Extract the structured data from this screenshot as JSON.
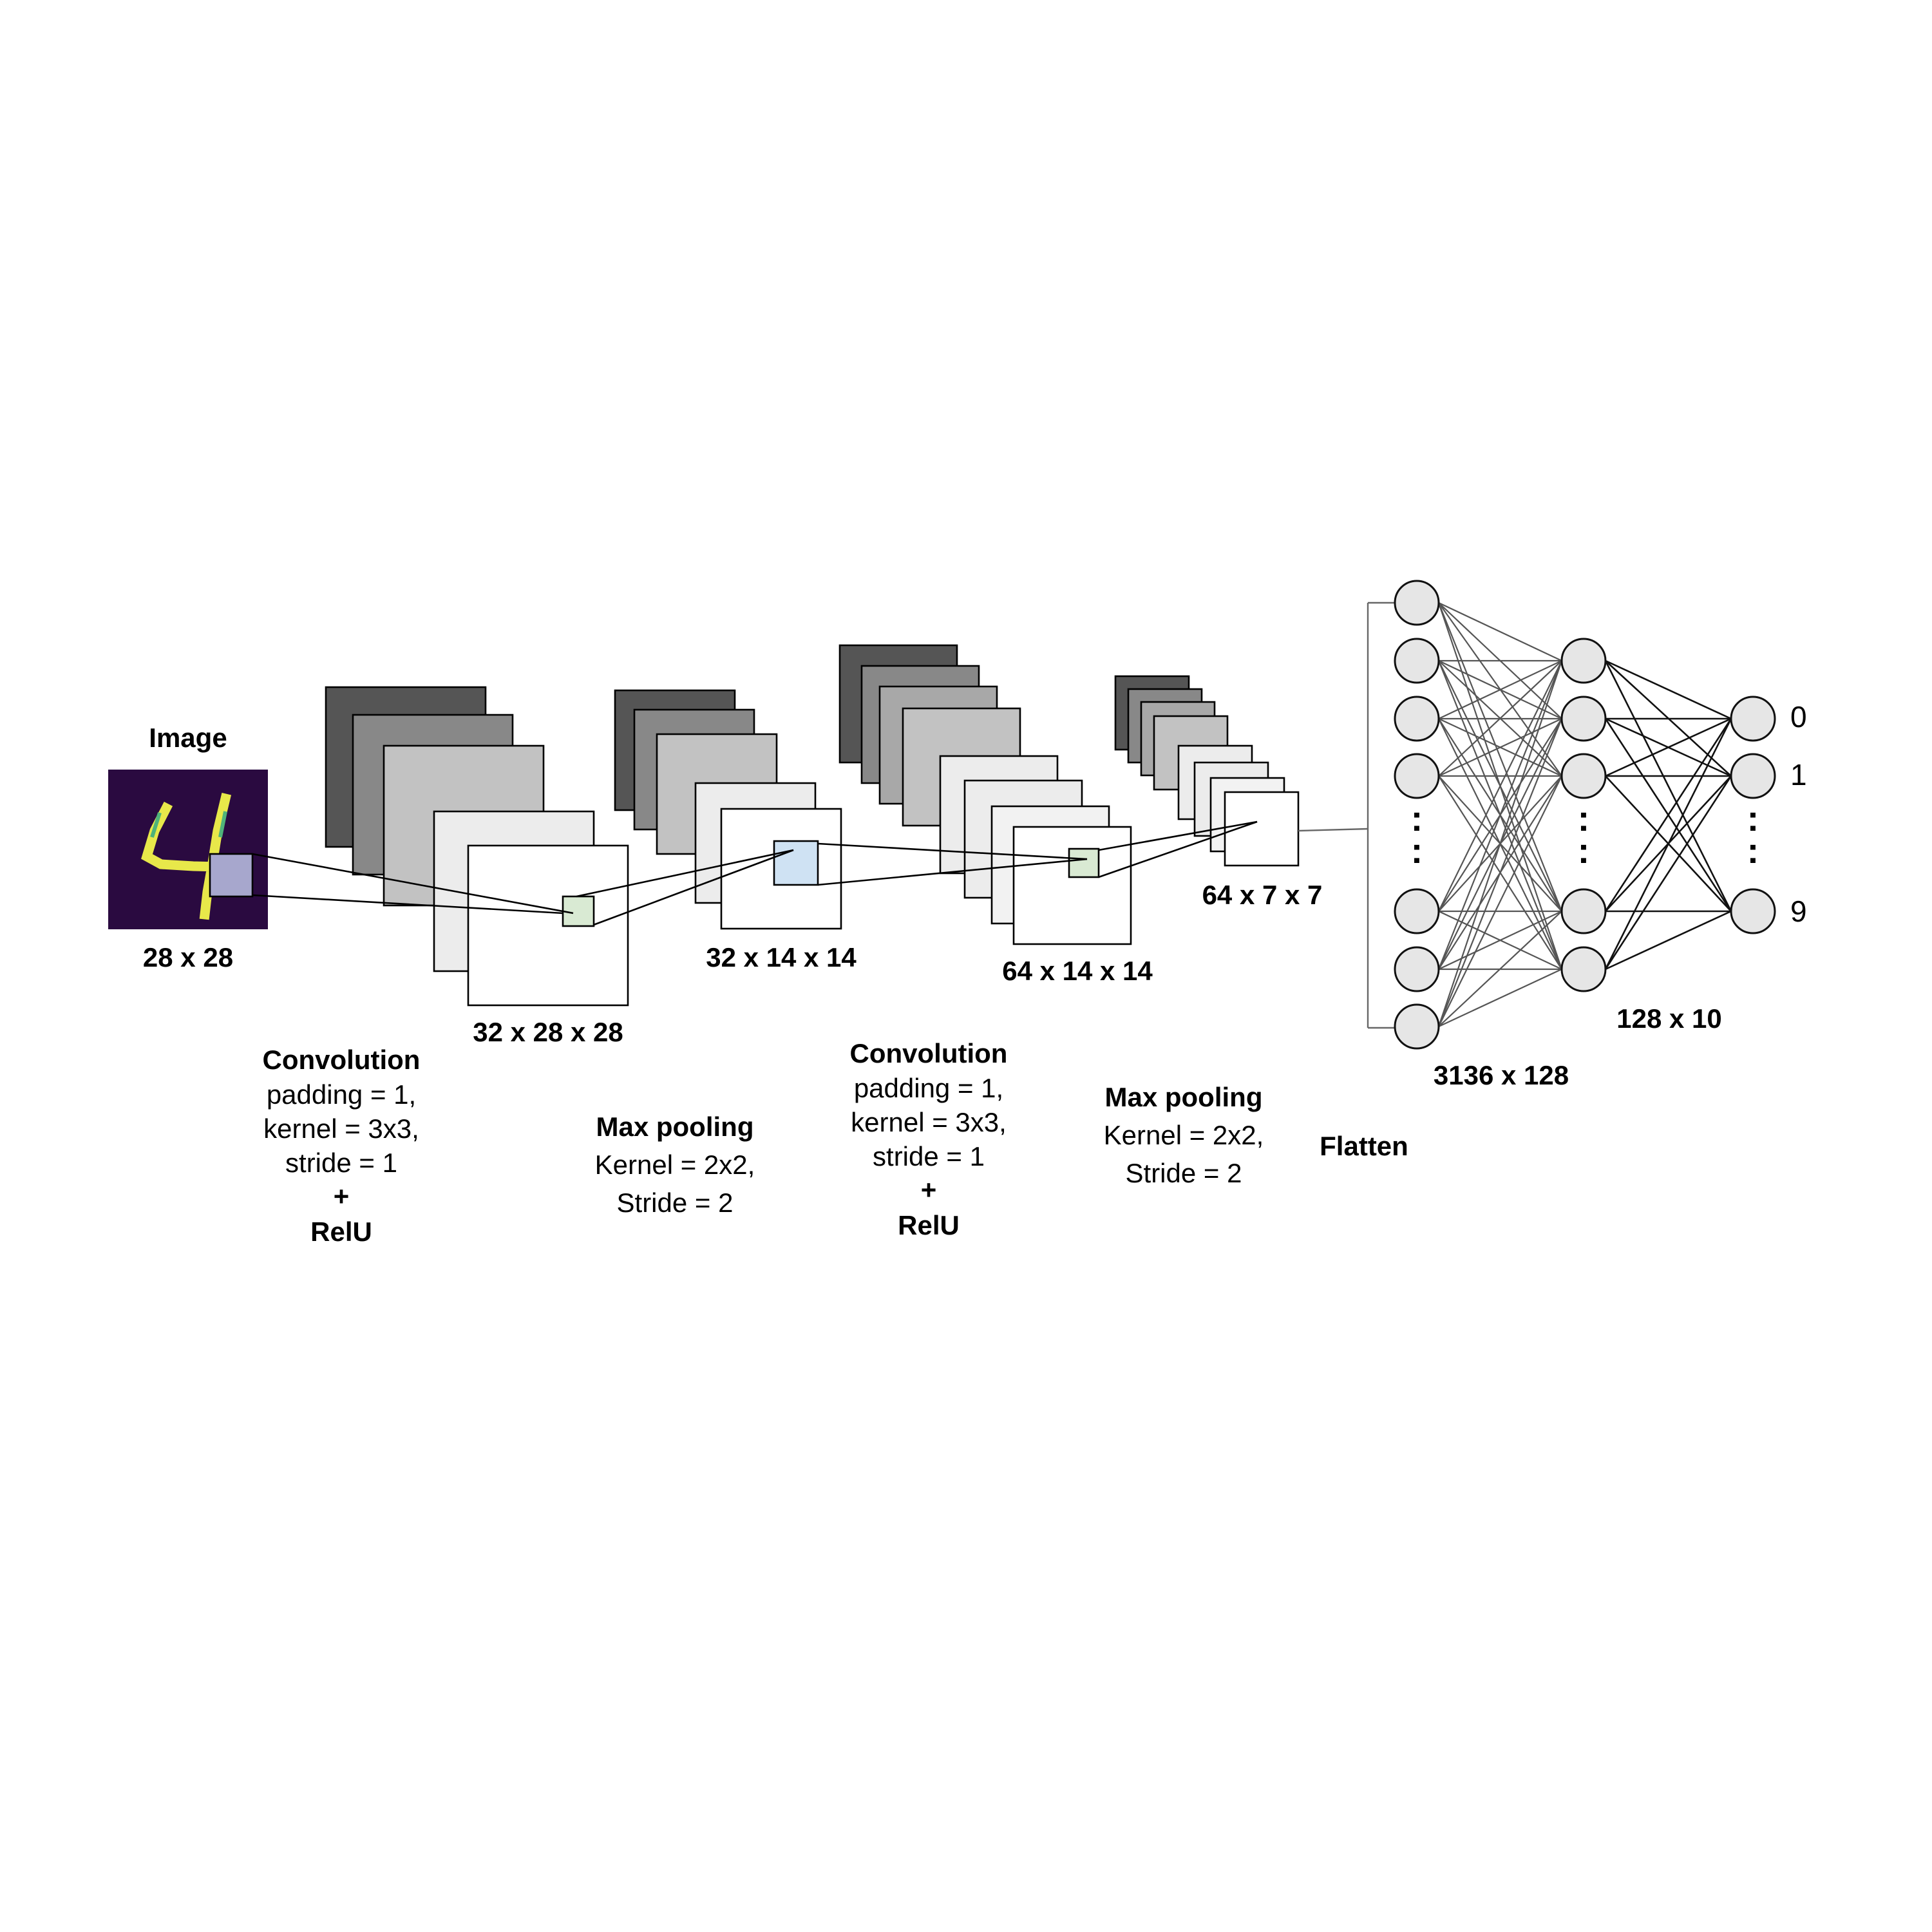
{
  "colors": {
    "map_dark": "#555555",
    "map_mid": "#888888",
    "map_light": "#c2c2c2",
    "map_pale": "#ececec",
    "map_white": "#ffffff",
    "kernel_green": "#d9ead3",
    "kernel_blue": "#cfe2f3",
    "image_bg": "#2a0a40",
    "digit_stroke": "#e8e84a",
    "node_fill": "#e6e6e6"
  },
  "input": {
    "title": "Image",
    "size": "28 x 28"
  },
  "feature_maps": {
    "conv1_size": "32 x 28 x 28",
    "pool1_size": "32 x 14 x 14",
    "conv2_size": "64 x 14 x 14",
    "pool2_size": "64 x 7 x 7"
  },
  "operations": {
    "conv1": {
      "title": "Convolution",
      "lines": [
        "padding = 1,",
        "kernel = 3x3,",
        "stride = 1"
      ],
      "plus": "+",
      "activation": "RelU"
    },
    "pool1": {
      "title": "Max pooling",
      "lines": [
        "Kernel = 2x2,",
        "Stride = 2"
      ]
    },
    "conv2": {
      "title": "Convolution",
      "lines": [
        "padding = 1,",
        "kernel = 3x3,",
        "stride = 1"
      ],
      "plus": "+",
      "activation": "RelU"
    },
    "pool2": {
      "title": "Max pooling",
      "lines": [
        "Kernel = 2x2,",
        "Stride = 2"
      ]
    },
    "flatten": "Flatten"
  },
  "dense": {
    "layer1_size": "3136 x 128",
    "layer2_size": "128 x 10",
    "ellipsis": ":",
    "outputs": [
      "0",
      "1",
      "9"
    ]
  }
}
